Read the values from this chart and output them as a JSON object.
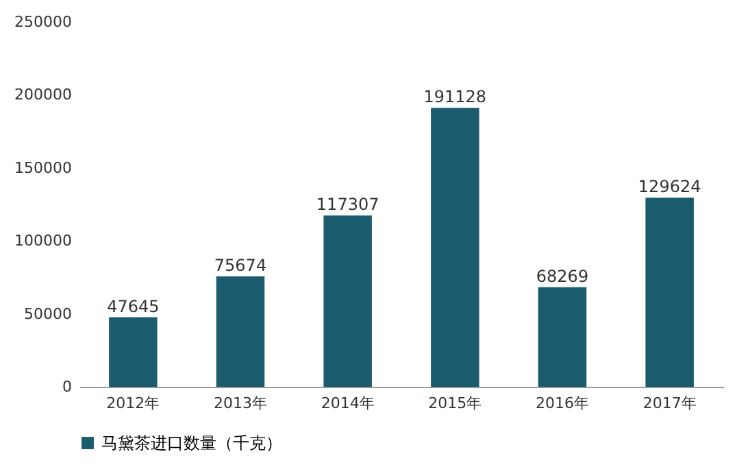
{
  "chart_data": {
    "type": "bar",
    "categories": [
      "2012年",
      "2013年",
      "2014年",
      "2015年",
      "2016年",
      "2017年"
    ],
    "series": [
      {
        "name": "马黛茶进口数量（千克）",
        "color": "#1b5b6e",
        "values": [
          47645,
          75674,
          117307,
          191128,
          68269,
          129624
        ]
      }
    ],
    "ylim": [
      0,
      250000
    ],
    "yticks": [
      0,
      50000,
      100000,
      150000,
      200000,
      250000
    ],
    "data_labels": true,
    "grid": false,
    "legend": "bottom"
  }
}
